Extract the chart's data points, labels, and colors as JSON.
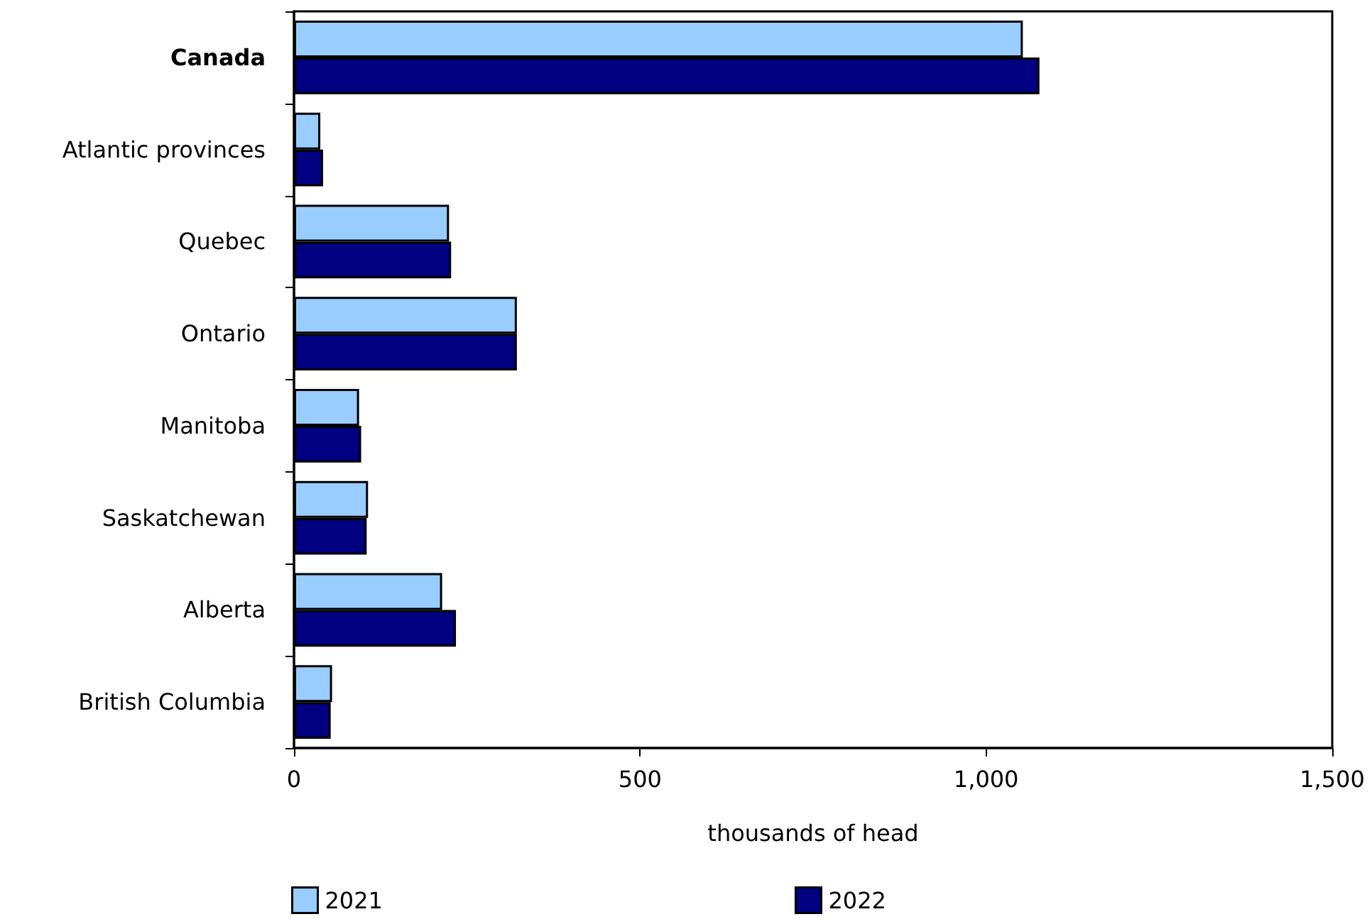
{
  "chart_data": {
    "type": "bar",
    "orientation": "horizontal",
    "categories": [
      "Canada",
      "Atlantic provinces",
      "Quebec",
      "Ontario",
      "Manitoba",
      "Saskatchewan",
      "Alberta",
      "British Columbia"
    ],
    "series": [
      {
        "name": "2021",
        "color": "#99ccff",
        "values": [
          1053,
          38,
          224,
          322,
          94,
          107,
          214,
          55
        ]
      },
      {
        "name": "2022",
        "color": "#000080",
        "values": [
          1077,
          42,
          227,
          322,
          97,
          105,
          234,
          53
        ]
      }
    ],
    "xlabel": "thousands of head",
    "xlim": [
      0,
      1500
    ],
    "xticks": [
      {
        "value": 0,
        "label": "0"
      },
      {
        "value": 500,
        "label": "500"
      },
      {
        "value": 1000,
        "label": "1,000"
      },
      {
        "value": 1500,
        "label": "1,500"
      }
    ],
    "grid": false,
    "legend": "bottom"
  }
}
